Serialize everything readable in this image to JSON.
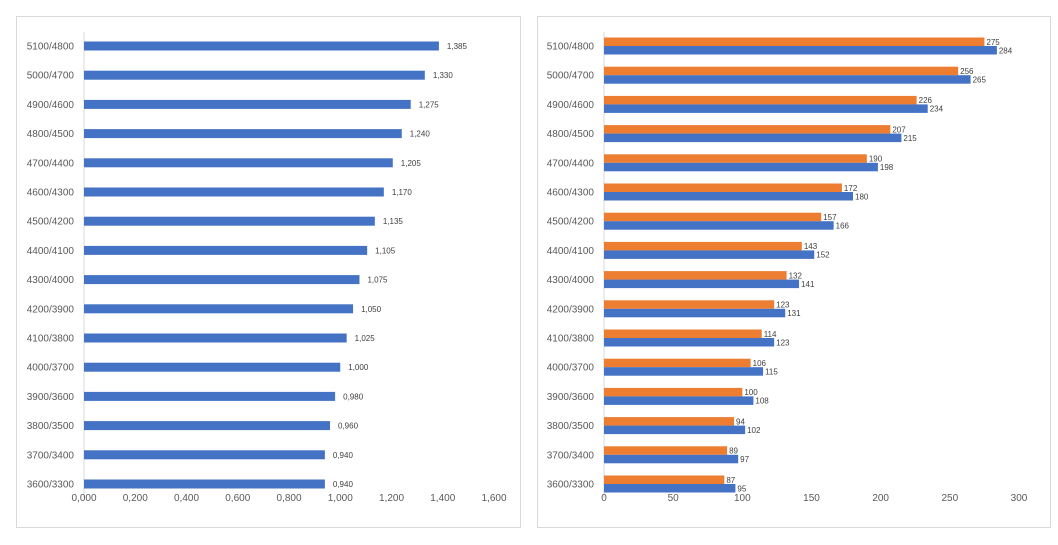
{
  "chart_data": [
    {
      "type": "bar",
      "orientation": "horizontal",
      "title": "",
      "xlabel": "",
      "ylabel": "",
      "categories": [
        "5100/4800",
        "5000/4700",
        "4900/4600",
        "4800/4500",
        "4700/4400",
        "4600/4300",
        "4500/4200",
        "4400/4100",
        "4300/4000",
        "4200/3900",
        "4100/3800",
        "4000/3700",
        "3900/3600",
        "3800/3500",
        "3700/3400",
        "3600/3300"
      ],
      "series": [
        {
          "name": "Series 1",
          "color": "#4472C4",
          "values": [
            1.385,
            1.33,
            1.275,
            1.24,
            1.205,
            1.17,
            1.135,
            1.105,
            1.075,
            1.05,
            1.025,
            1.0,
            0.98,
            0.96,
            0.94,
            0.94
          ],
          "labels": [
            "1,385",
            "1,330",
            "1,275",
            "1,240",
            "1,205",
            "1,170",
            "1,135",
            "1,105",
            "1,075",
            "1,050",
            "1,025",
            "1,000",
            "0,980",
            "0,960",
            "0,940",
            "0,940"
          ]
        }
      ],
      "xlim": [
        0,
        1.6
      ],
      "xticks": [
        0,
        0.2,
        0.4,
        0.6,
        0.8,
        1.0,
        1.2,
        1.4,
        1.6
      ],
      "xtick_labels": [
        "0,000",
        "0,200",
        "0,400",
        "0,600",
        "0,800",
        "1,000",
        "1,200",
        "1,400",
        "1,600"
      ],
      "grid": false,
      "legend": "none"
    },
    {
      "type": "bar",
      "orientation": "horizontal",
      "title": "",
      "xlabel": "",
      "ylabel": "",
      "categories": [
        "5100/4800",
        "5000/4700",
        "4900/4600",
        "4800/4500",
        "4700/4400",
        "4600/4300",
        "4500/4200",
        "4400/4100",
        "4300/4000",
        "4200/3900",
        "4100/3800",
        "4000/3700",
        "3900/3600",
        "3800/3500",
        "3700/3400",
        "3600/3300"
      ],
      "series": [
        {
          "name": "Series 1",
          "color": "#ED7D31",
          "values": [
            275,
            256,
            226,
            207,
            190,
            172,
            157,
            143,
            132,
            123,
            114,
            106,
            100,
            94,
            89,
            87
          ]
        },
        {
          "name": "Series 2",
          "color": "#4472C4",
          "values": [
            284,
            265,
            234,
            215,
            198,
            180,
            166,
            152,
            141,
            131,
            123,
            115,
            108,
            102,
            97,
            95
          ]
        }
      ],
      "xlim": [
        0,
        300
      ],
      "xticks": [
        0,
        50,
        100,
        150,
        200,
        250,
        300
      ],
      "xtick_labels": [
        "0",
        "50",
        "100",
        "150",
        "200",
        "250",
        "300"
      ],
      "grid": false,
      "legend": "none"
    }
  ]
}
